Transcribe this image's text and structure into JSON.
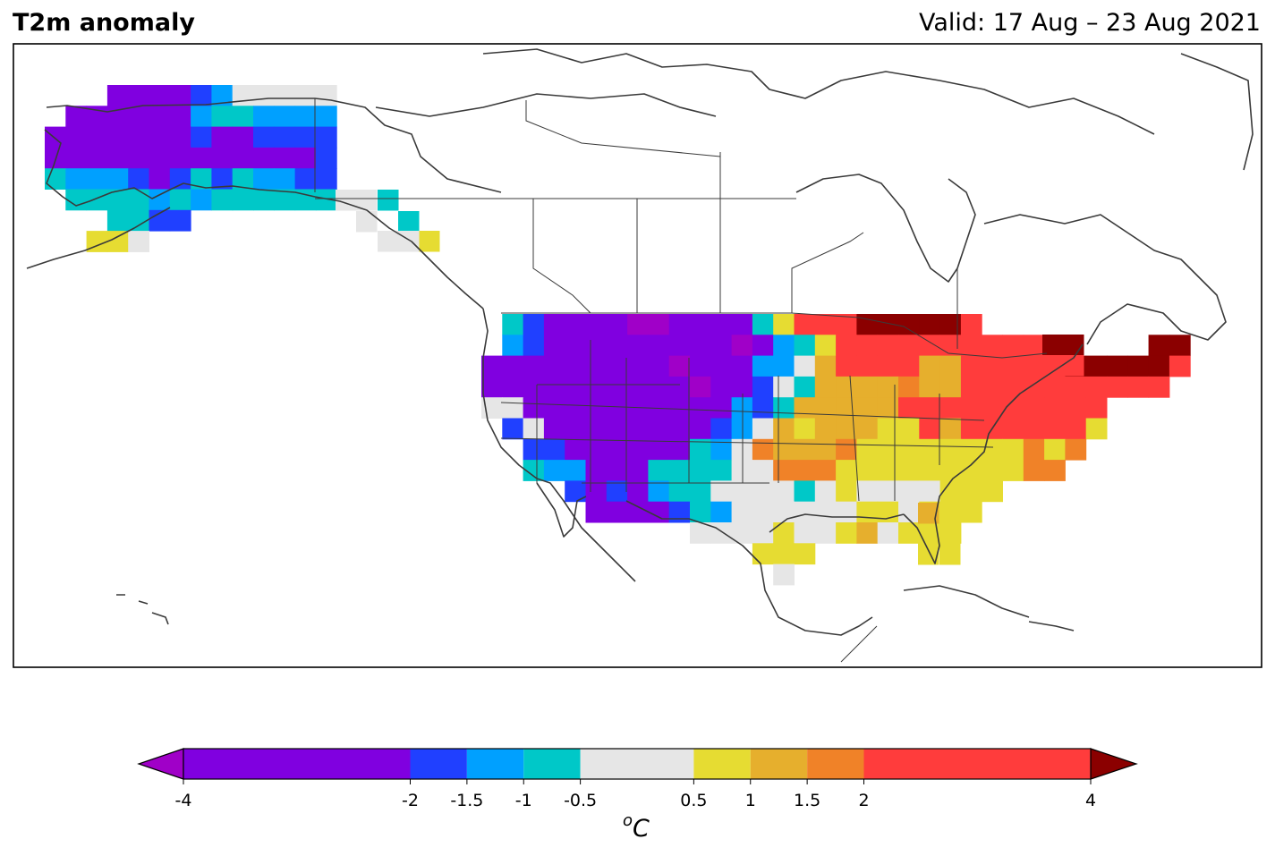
{
  "header": {
    "title": "T2m anomaly",
    "valid": "Valid: 17 Aug – 23 Aug 2021"
  },
  "colorbar": {
    "bounds": [
      -4,
      -2,
      -1.5,
      -1,
      -0.5,
      0.5,
      1,
      1.5,
      2,
      4
    ],
    "tick_labels": [
      "-4",
      "-2",
      "-1.5",
      "-1",
      "-0.5",
      "0.5",
      "1",
      "1.5",
      "2",
      "4"
    ],
    "colors": [
      "#8000e0",
      "#2040ff",
      "#00a0ff",
      "#00c8c8",
      "#e6e6e6",
      "#e6dc32",
      "#e6af2d",
      "#f08228",
      "#ff3c3c"
    ],
    "under_color": "#a000c8",
    "over_color": "#8b0000",
    "unit": "C",
    "unit_superscript": "o"
  },
  "regions": [
    {
      "name": "alaska-interior",
      "category": "cold",
      "anomaly": "< -2"
    },
    {
      "name": "western-us",
      "category": "cold",
      "anomaly": "< -2"
    },
    {
      "name": "great-lakes-northeast",
      "category": "warm",
      "anomaly": "2 to 4"
    },
    {
      "name": "upper-midwest-and-maine",
      "category": "very-warm",
      "anomaly": "> 4"
    },
    {
      "name": "southeast-us",
      "category": "mild-warm",
      "anomaly": "0.5 to 1"
    },
    {
      "name": "texas-plains",
      "category": "neutral",
      "anomaly": "-0.5 to 0.5"
    }
  ]
}
